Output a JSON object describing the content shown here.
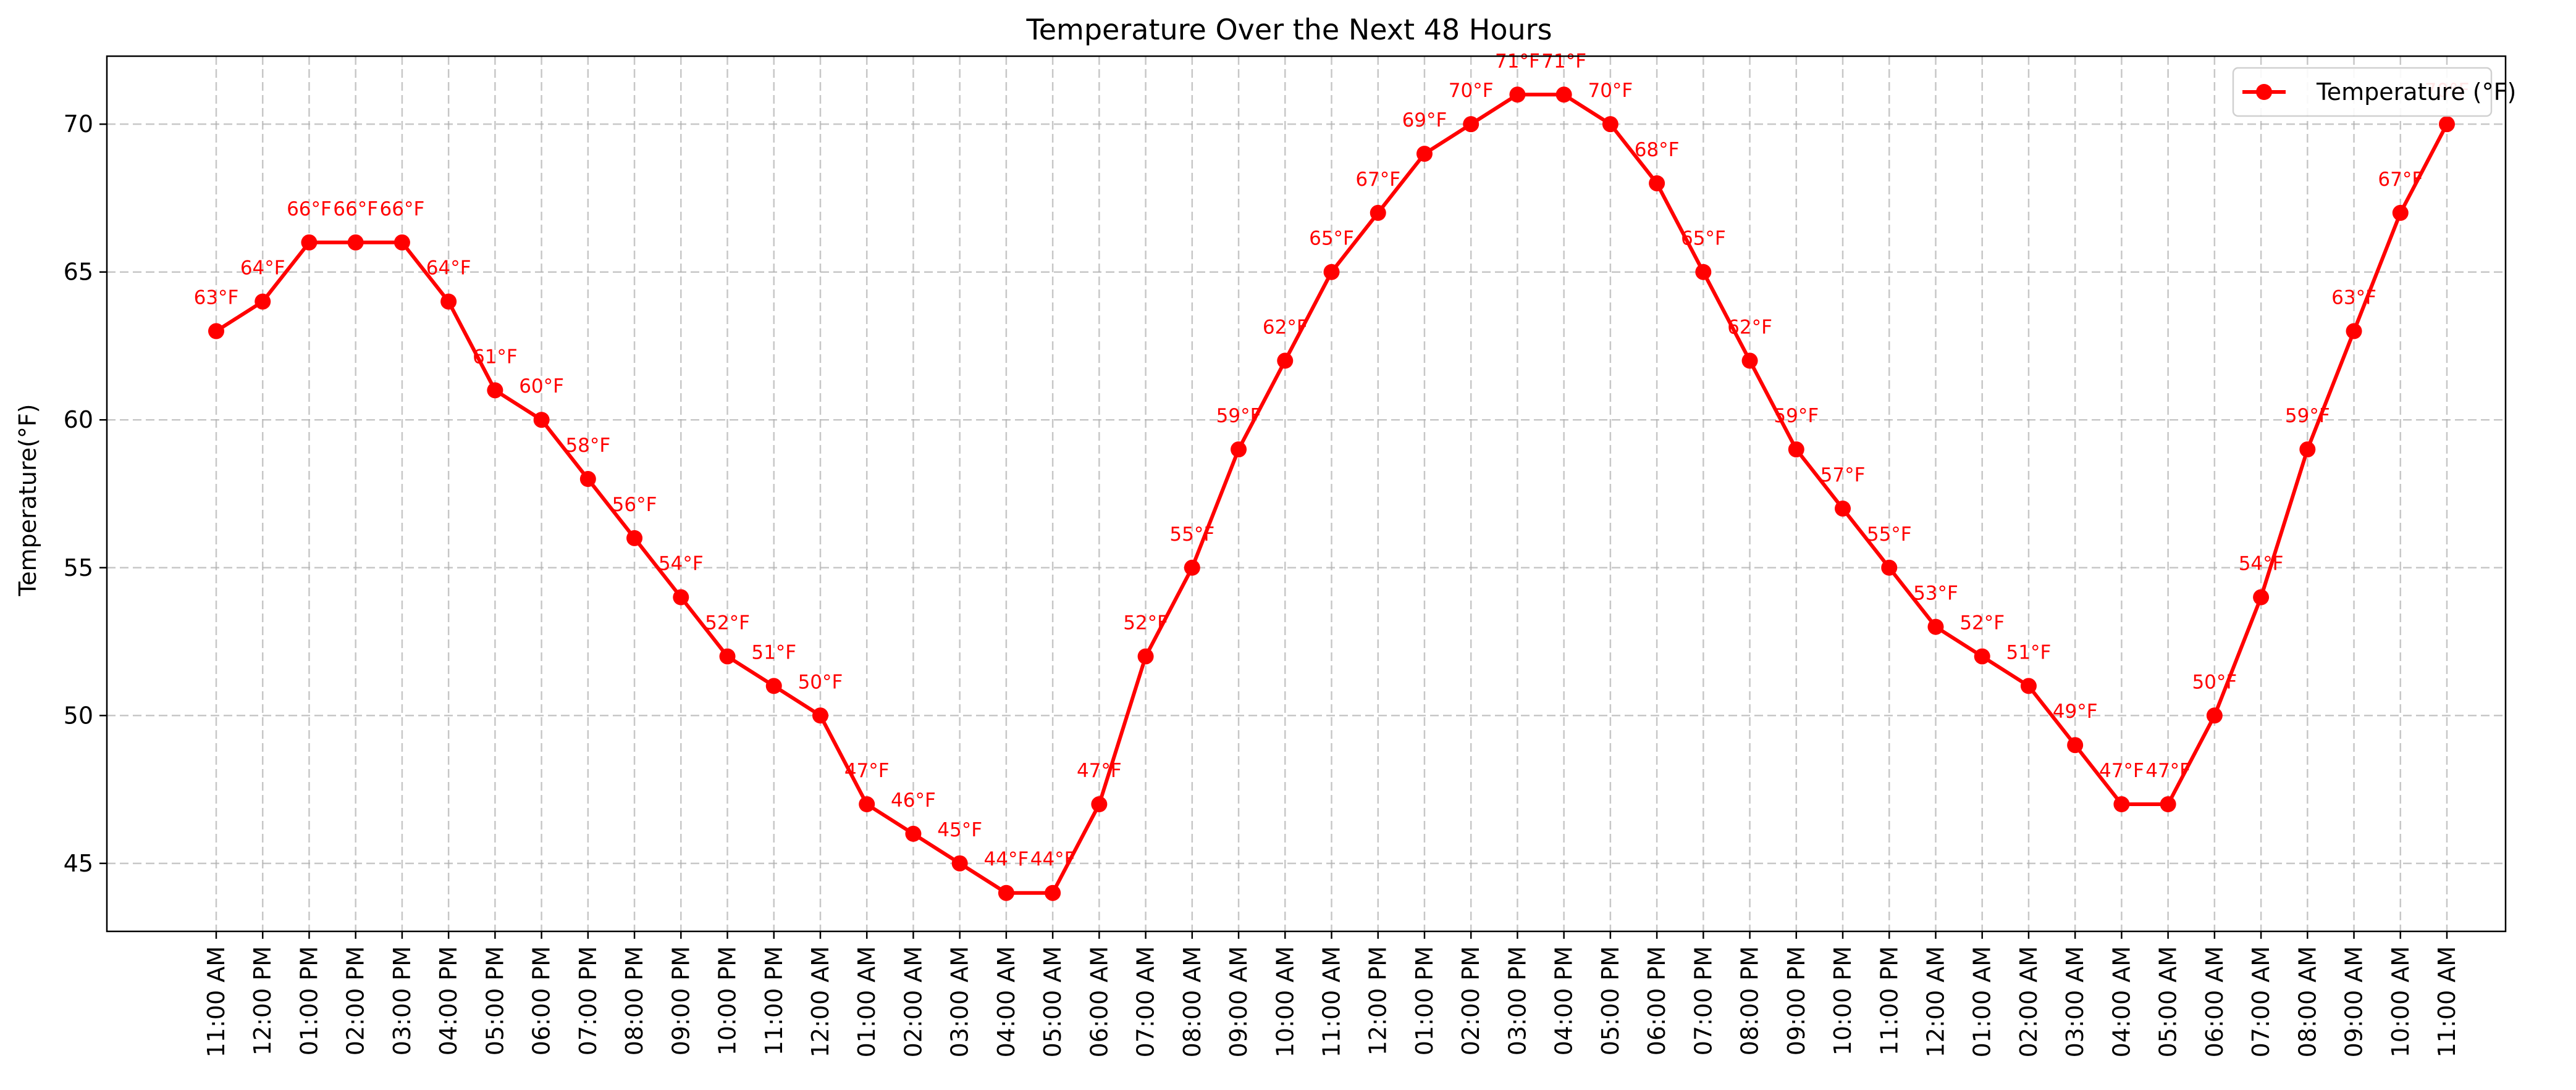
{
  "chart_data": {
    "type": "line",
    "title": "Temperature Over the Next 48 Hours",
    "xlabel": "",
    "ylabel": "Temperature(°F)",
    "ylim": [
      42.7,
      72.3
    ],
    "yticks": [
      45,
      50,
      55,
      60,
      65,
      70
    ],
    "grid": true,
    "legend_position": "top-right",
    "color": "#ff0000",
    "categories": [
      "11:00 AM",
      "12:00 PM",
      "01:00 PM",
      "02:00 PM",
      "03:00 PM",
      "04:00 PM",
      "05:00 PM",
      "06:00 PM",
      "07:00 PM",
      "08:00 PM",
      "09:00 PM",
      "10:00 PM",
      "11:00 PM",
      "12:00 AM",
      "01:00 AM",
      "02:00 AM",
      "03:00 AM",
      "04:00 AM",
      "05:00 AM",
      "06:00 AM",
      "07:00 AM",
      "08:00 AM",
      "09:00 AM",
      "10:00 AM",
      "11:00 AM",
      "12:00 PM",
      "01:00 PM",
      "02:00 PM",
      "03:00 PM",
      "04:00 PM",
      "05:00 PM",
      "06:00 PM",
      "07:00 PM",
      "08:00 PM",
      "09:00 PM",
      "10:00 PM",
      "11:00 PM",
      "12:00 AM",
      "01:00 AM",
      "02:00 AM",
      "03:00 AM",
      "04:00 AM",
      "05:00 AM",
      "06:00 AM",
      "07:00 AM",
      "08:00 AM",
      "09:00 AM",
      "10:00 AM",
      "11:00 AM"
    ],
    "series": [
      {
        "name": "Temperature (°F)",
        "values": [
          63,
          64,
          66,
          66,
          66,
          64,
          61,
          60,
          58,
          56,
          54,
          52,
          51,
          50,
          47,
          46,
          45,
          44,
          44,
          47,
          52,
          55,
          59,
          62,
          65,
          67,
          69,
          70,
          71,
          71,
          70,
          68,
          65,
          62,
          59,
          57,
          55,
          53,
          52,
          51,
          49,
          47,
          47,
          50,
          54,
          59,
          63,
          67,
          70
        ],
        "data_labels": [
          "63°F",
          "64°F",
          "66°F",
          "66°F",
          "66°F",
          "64°F",
          "61°F",
          "60°F",
          "58°F",
          "56°F",
          "54°F",
          "52°F",
          "51°F",
          "50°F",
          "47°F",
          "46°F",
          "45°F",
          "44°F",
          "44°F",
          "47°F",
          "52°F",
          "55°F",
          "59°F",
          "62°F",
          "65°F",
          "67°F",
          "69°F",
          "70°F",
          "71°F",
          "71°F",
          "70°F",
          "68°F",
          "65°F",
          "62°F",
          "59°F",
          "57°F",
          "55°F",
          "53°F",
          "52°F",
          "51°F",
          "49°F",
          "47°F",
          "47°F",
          "50°F",
          "54°F",
          "59°F",
          "63°F",
          "67°F",
          "70°F"
        ]
      }
    ]
  }
}
